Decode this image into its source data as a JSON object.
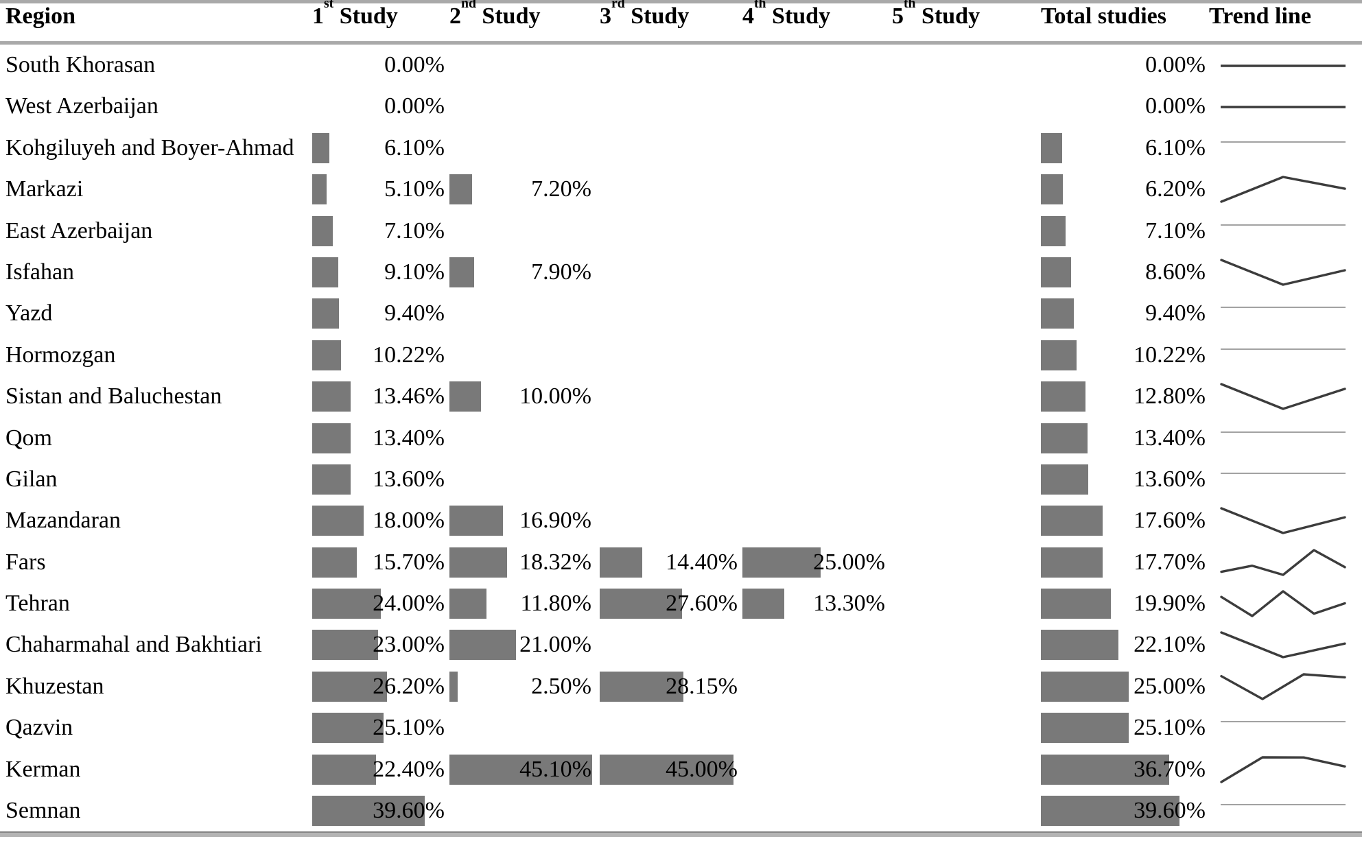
{
  "colors": {
    "bar": "#797979",
    "rule": "#a9a9a9",
    "spark_dark": "#3c3c3c",
    "spark_light": "#a2a2a2",
    "text": "#000000"
  },
  "header": {
    "region": "Region",
    "studies": [
      {
        "num": "1",
        "ord": "st"
      },
      {
        "num": "2",
        "ord": "nd"
      },
      {
        "num": "3",
        "ord": "rd"
      },
      {
        "num": "4",
        "ord": "th"
      },
      {
        "num": "5",
        "ord": "th"
      }
    ],
    "study_word": "Study",
    "total": "Total studies",
    "trend": "Trend line"
  },
  "rows": [
    {
      "region": "South Khorasan",
      "studies": [
        "0.00%",
        null,
        null,
        null,
        null
      ],
      "total": "0.00%"
    },
    {
      "region": "West Azerbaijan",
      "studies": [
        "0.00%",
        null,
        null,
        null,
        null
      ],
      "total": "0.00%"
    },
    {
      "region": "Kohgiluyeh and Boyer-Ahmad",
      "studies": [
        "6.10%",
        null,
        null,
        null,
        null
      ],
      "total": "6.10%"
    },
    {
      "region": "Markazi",
      "studies": [
        "5.10%",
        "7.20%",
        null,
        null,
        null
      ],
      "total": "6.20%"
    },
    {
      "region": "East Azerbaijan",
      "studies": [
        "7.10%",
        null,
        null,
        null,
        null
      ],
      "total": "7.10%"
    },
    {
      "region": "Isfahan",
      "studies": [
        "9.10%",
        "7.90%",
        null,
        null,
        null
      ],
      "total": "8.60%"
    },
    {
      "region": "Yazd",
      "studies": [
        "9.40%",
        null,
        null,
        null,
        null
      ],
      "total": "9.40%"
    },
    {
      "region": "Hormozgan",
      "studies": [
        "10.22%",
        null,
        null,
        null,
        null
      ],
      "total": "10.22%"
    },
    {
      "region": "Sistan and Baluchestan",
      "studies": [
        "13.46%",
        "10.00%",
        null,
        null,
        null
      ],
      "total": "12.80%"
    },
    {
      "region": "Qom",
      "studies": [
        "13.40%",
        null,
        null,
        null,
        null
      ],
      "total": "13.40%"
    },
    {
      "region": "Gilan",
      "studies": [
        "13.60%",
        null,
        null,
        null,
        null
      ],
      "total": "13.60%"
    },
    {
      "region": "Mazandaran",
      "studies": [
        "18.00%",
        "16.90%",
        null,
        null,
        null
      ],
      "total": "17.60%"
    },
    {
      "region": "Fars",
      "studies": [
        "15.70%",
        "18.32%",
        "14.40%",
        "25.00%",
        null
      ],
      "total": "17.70%"
    },
    {
      "region": "Tehran",
      "studies": [
        "24.00%",
        "11.80%",
        "27.60%",
        "13.30%",
        null
      ],
      "total": "19.90%"
    },
    {
      "region": "Chaharmahal and Bakhtiari",
      "studies": [
        "23.00%",
        "21.00%",
        null,
        null,
        null
      ],
      "total": "22.10%"
    },
    {
      "region": "Khuzestan",
      "studies": [
        "26.20%",
        "2.50%",
        "28.15%",
        null,
        null
      ],
      "total": "25.00%"
    },
    {
      "region": "Qazvin",
      "studies": [
        "25.10%",
        null,
        null,
        null,
        null
      ],
      "total": "25.10%"
    },
    {
      "region": "Kerman",
      "studies": [
        "22.40%",
        "45.10%",
        "45.00%",
        null,
        null
      ],
      "total": "36.70%"
    },
    {
      "region": "Semnan",
      "studies": [
        "39.60%",
        null,
        null,
        null,
        null
      ],
      "total": "39.60%"
    }
  ],
  "chart_data": {
    "type": "table",
    "title": "",
    "columns": [
      "Region",
      "1st Study",
      "2nd Study",
      "3rd Study",
      "4th Study",
      "5th Study",
      "Total studies",
      "Trend line"
    ],
    "unit": "%",
    "bars": "in-cell data bars proportional to percentage, gray",
    "trend_line": "sparkline per row of study values followed by total; flat line when no variation",
    "rows": [
      {
        "region": "South Khorasan",
        "studies": [
          0.0,
          null,
          null,
          null,
          null
        ],
        "total": 0.0
      },
      {
        "region": "West Azerbaijan",
        "studies": [
          0.0,
          null,
          null,
          null,
          null
        ],
        "total": 0.0
      },
      {
        "region": "Kohgiluyeh and Boyer-Ahmad",
        "studies": [
          6.1,
          null,
          null,
          null,
          null
        ],
        "total": 6.1
      },
      {
        "region": "Markazi",
        "studies": [
          5.1,
          7.2,
          null,
          null,
          null
        ],
        "total": 6.2
      },
      {
        "region": "East Azerbaijan",
        "studies": [
          7.1,
          null,
          null,
          null,
          null
        ],
        "total": 7.1
      },
      {
        "region": "Isfahan",
        "studies": [
          9.1,
          7.9,
          null,
          null,
          null
        ],
        "total": 8.6
      },
      {
        "region": "Yazd",
        "studies": [
          9.4,
          null,
          null,
          null,
          null
        ],
        "total": 9.4
      },
      {
        "region": "Hormozgan",
        "studies": [
          10.22,
          null,
          null,
          null,
          null
        ],
        "total": 10.22
      },
      {
        "region": "Sistan and Baluchestan",
        "studies": [
          13.46,
          10.0,
          null,
          null,
          null
        ],
        "total": 12.8
      },
      {
        "region": "Qom",
        "studies": [
          13.4,
          null,
          null,
          null,
          null
        ],
        "total": 13.4
      },
      {
        "region": "Gilan",
        "studies": [
          13.6,
          null,
          null,
          null,
          null
        ],
        "total": 13.6
      },
      {
        "region": "Mazandaran",
        "studies": [
          18.0,
          16.9,
          null,
          null,
          null
        ],
        "total": 17.6
      },
      {
        "region": "Fars",
        "studies": [
          15.7,
          18.32,
          14.4,
          25.0,
          null
        ],
        "total": 17.7
      },
      {
        "region": "Tehran",
        "studies": [
          24.0,
          11.8,
          27.6,
          13.3,
          null
        ],
        "total": 19.9
      },
      {
        "region": "Chaharmahal and Bakhtiari",
        "studies": [
          23.0,
          21.0,
          null,
          null,
          null
        ],
        "total": 22.1
      },
      {
        "region": "Khuzestan",
        "studies": [
          26.2,
          2.5,
          28.15,
          null,
          null
        ],
        "total": 25.0
      },
      {
        "region": "Qazvin",
        "studies": [
          25.1,
          null,
          null,
          null,
          null
        ],
        "total": 25.1
      },
      {
        "region": "Kerman",
        "studies": [
          22.4,
          45.1,
          45.0,
          null,
          null
        ],
        "total": 36.7
      },
      {
        "region": "Semnan",
        "studies": [
          39.6,
          null,
          null,
          null,
          null
        ],
        "total": 39.6
      }
    ]
  }
}
